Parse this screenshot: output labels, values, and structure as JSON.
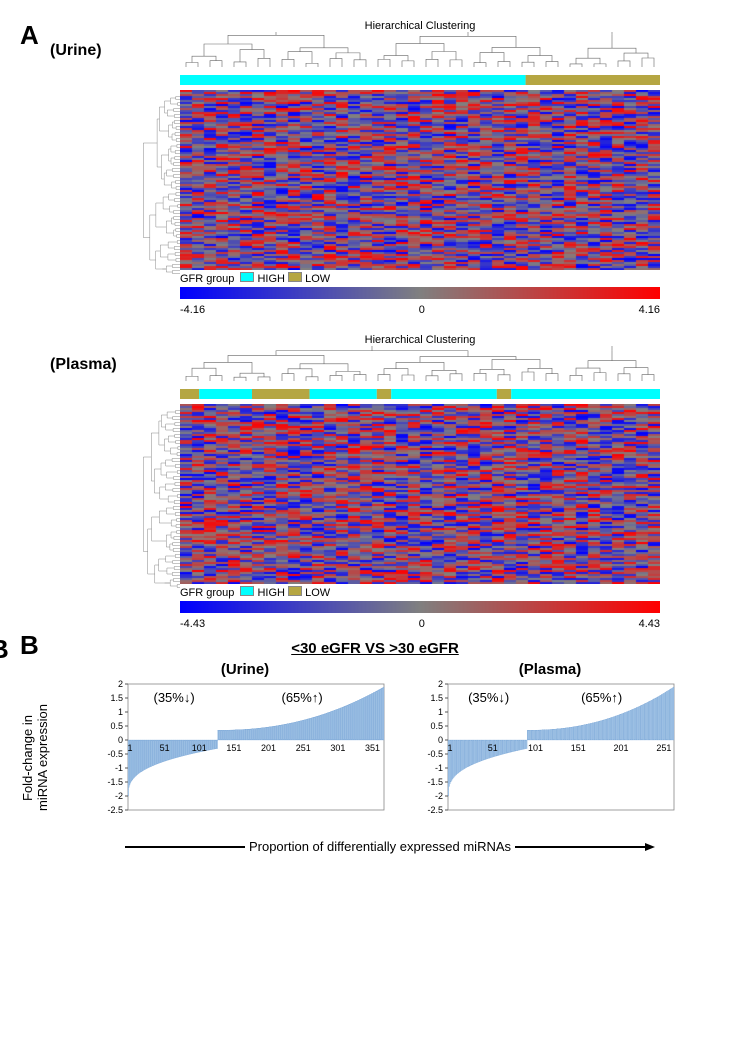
{
  "panelA": {
    "label": "A",
    "dendrogram_title": "Hierarchical Clustering",
    "urine": {
      "label": "(Urine)",
      "group_bar": [
        {
          "color": "#00ffff",
          "width": 0.72
        },
        {
          "color": "#b5a642",
          "width": 0.28
        }
      ],
      "legend": {
        "text": "GFR group",
        "items": [
          {
            "color": "#00ffff",
            "label": "HIGH"
          },
          {
            "color": "#b5a642",
            "label": "LOW"
          }
        ]
      },
      "scale": {
        "min": -4.16,
        "mid": 0.0,
        "max": 4.16,
        "low_color": "#0000ff",
        "mid_color": "#808080",
        "high_color": "#ff0000"
      },
      "heatmap": {
        "rows": 90,
        "cols": 40,
        "seed": 1
      }
    },
    "plasma": {
      "label": "(Plasma)",
      "group_bar": [
        {
          "color": "#b5a642",
          "width": 0.04
        },
        {
          "color": "#00ffff",
          "width": 0.11
        },
        {
          "color": "#b5a642",
          "width": 0.12
        },
        {
          "color": "#00ffff",
          "width": 0.14
        },
        {
          "color": "#b5a642",
          "width": 0.03
        },
        {
          "color": "#00ffff",
          "width": 0.22
        },
        {
          "color": "#b5a642",
          "width": 0.03
        },
        {
          "color": "#00ffff",
          "width": 0.31
        }
      ],
      "legend": {
        "text": "GFR group",
        "items": [
          {
            "color": "#00ffff",
            "label": "HIGH"
          },
          {
            "color": "#b5a642",
            "label": "LOW"
          }
        ]
      },
      "scale": {
        "min": -4.43,
        "mid": 0.0,
        "max": 4.43,
        "low_color": "#0000ff",
        "mid_color": "#808080",
        "high_color": "#ff0000"
      },
      "heatmap": {
        "rows": 90,
        "cols": 40,
        "seed": 2
      }
    }
  },
  "panelB": {
    "label": "B",
    "title": "<30 eGFR VS >30 eGFR",
    "y_axis": "Fold-change in\nmiRNA expression",
    "x_axis": "Proportion of differentially expressed miRNAs",
    "urine": {
      "label": "(Urine)",
      "down_annot": "(35%↓)",
      "up_annot": "(65%↑)",
      "ylim": [
        -2.5,
        2
      ],
      "yticks": [
        -2.5,
        -2,
        -1.5,
        -1,
        -0.5,
        0,
        0.5,
        1,
        1.5,
        2
      ],
      "xticks": [
        1,
        51,
        101,
        151,
        201,
        251,
        301,
        351
      ],
      "n": 380,
      "split": 0.35,
      "bar_color": "#a8c8e8",
      "border_color": "#6a9bd1"
    },
    "plasma": {
      "label": "(Plasma)",
      "down_annot": "(35%↓)",
      "up_annot": "(65%↑)",
      "ylim": [
        -2.5,
        2
      ],
      "yticks": [
        -2.5,
        -2,
        -1.5,
        -1,
        -0.5,
        0,
        0.5,
        1,
        1.5,
        2
      ],
      "xticks": [
        1,
        51,
        101,
        151,
        201,
        251
      ],
      "n": 280,
      "split": 0.35,
      "bar_color": "#a8c8e8",
      "border_color": "#6a9bd1"
    }
  },
  "colors": {
    "background": "#ffffff",
    "text": "#000000",
    "dendro": "#888888"
  }
}
